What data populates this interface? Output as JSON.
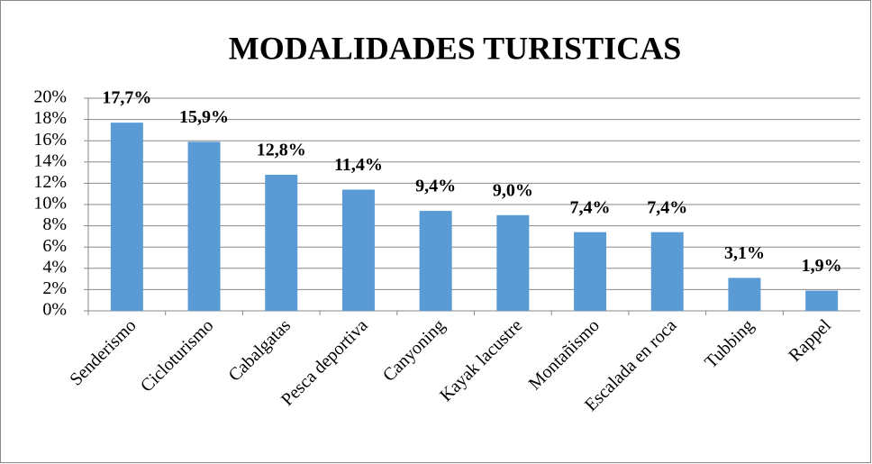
{
  "chart_data": {
    "type": "bar",
    "title": "MODALIDADES TURISTICAS",
    "categories": [
      "Senderismo",
      "Cicloturismo",
      "Cabalgatas",
      "Pesca deportiva",
      "Canyoning",
      "Kayak lacustre",
      "Montañismo",
      "Escalada en roca",
      "Tubbing",
      "Rappel"
    ],
    "values": [
      17.7,
      15.9,
      12.8,
      11.4,
      9.4,
      9.0,
      7.4,
      7.4,
      3.1,
      1.9
    ],
    "value_labels": [
      "17,7%",
      "15,9%",
      "12,8%",
      "11,4%",
      "9,4%",
      "9,0%",
      "7,4%",
      "7,4%",
      "3,1%",
      "1,9%"
    ],
    "color": "#5b9bd5",
    "ylim": [
      0,
      20
    ],
    "yticks": [
      {
        "value": 0,
        "label": "0%"
      },
      {
        "value": 2,
        "label": "2%"
      },
      {
        "value": 4,
        "label": "4%"
      },
      {
        "value": 6,
        "label": "6%"
      },
      {
        "value": 8,
        "label": "8%"
      },
      {
        "value": 10,
        "label": "10%"
      },
      {
        "value": 12,
        "label": "12%"
      },
      {
        "value": 14,
        "label": "14%"
      },
      {
        "value": 16,
        "label": "16%"
      },
      {
        "value": 18,
        "label": "18%"
      },
      {
        "value": 20,
        "label": "20%"
      }
    ],
    "grid": true
  }
}
